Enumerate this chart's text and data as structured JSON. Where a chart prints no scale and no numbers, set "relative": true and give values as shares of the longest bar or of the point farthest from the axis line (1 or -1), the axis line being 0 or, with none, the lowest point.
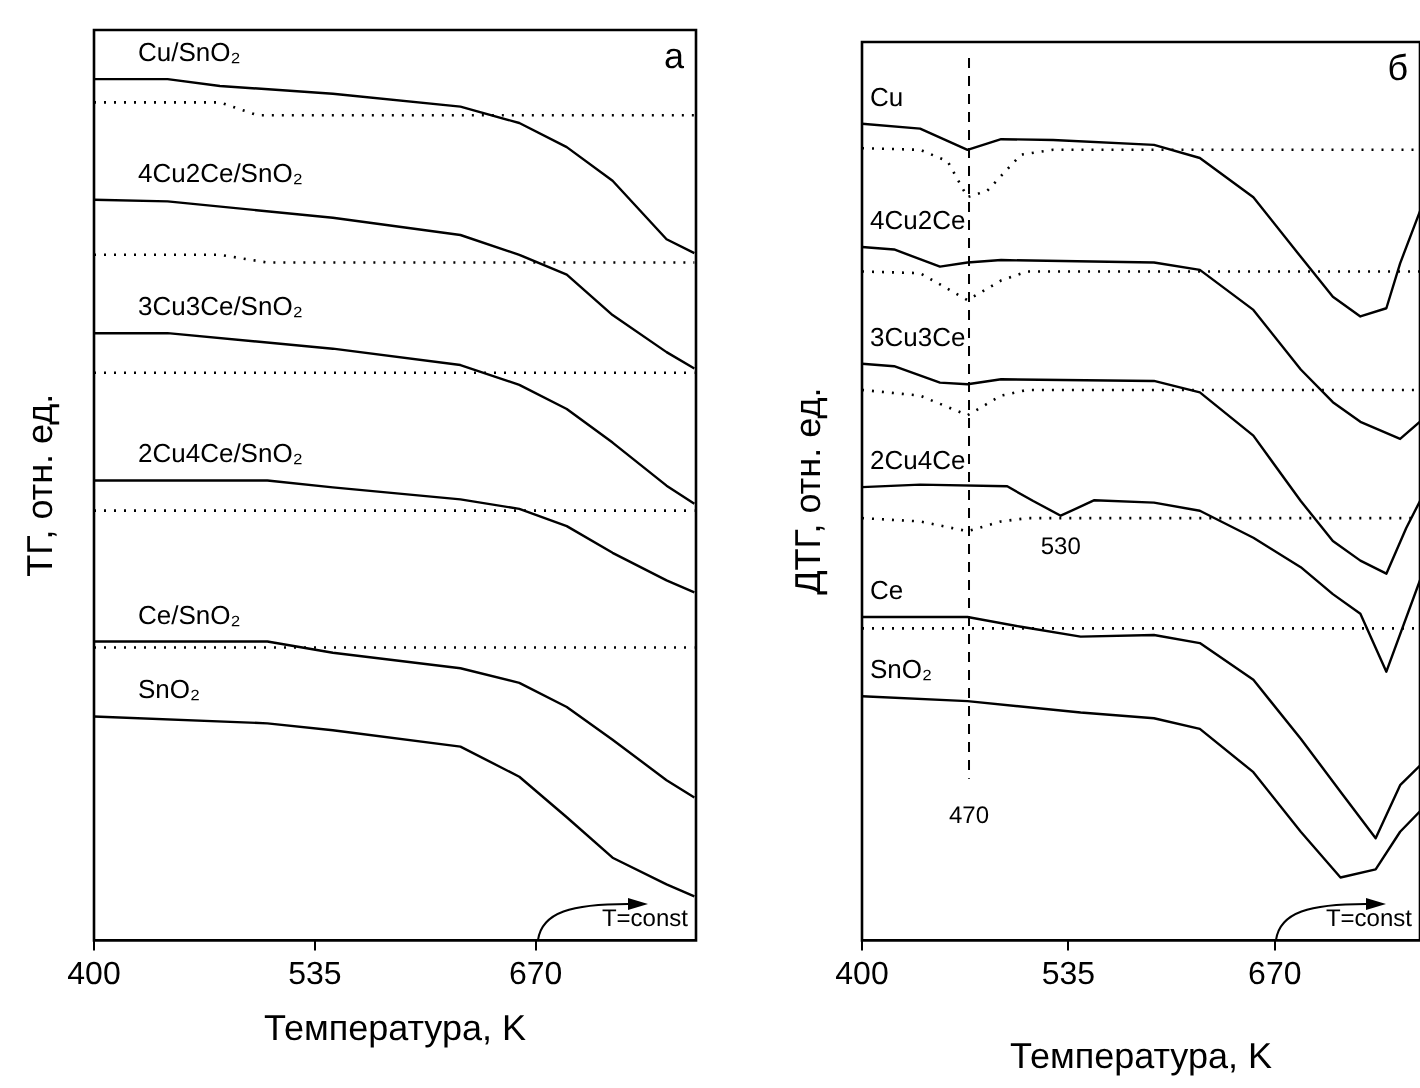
{
  "chart_data": [
    {
      "type": "line",
      "relative": true,
      "xlabel": "Температура, K",
      "ylabel": "ТГ, отн. ед.",
      "xlim": [
        400,
        768
      ],
      "xticks": [
        400,
        535,
        670
      ],
      "grid": false,
      "legend": false,
      "marker": "none",
      "annotations": [
        "а",
        "T=const"
      ],
      "series": [
        {
          "name": "Cu/SnO₂",
          "color": "#000000",
          "line_style": "solid",
          "x": [
            400,
            445,
            477,
            546,
            624,
            660,
            689,
            717,
            750,
            767
          ],
          "values": [
            1.0,
            1.0,
            0.992,
            0.983,
            0.968,
            0.949,
            0.921,
            0.882,
            0.814,
            0.798
          ]
        },
        {
          "color": "#000000",
          "line_style": "dotted",
          "x": [
            400,
            477,
            500,
            767
          ],
          "values": [
            0.973,
            0.973,
            0.958,
            0.958
          ]
        },
        {
          "name": "4Cu2Ce/SnO₂",
          "color": "#000000",
          "line_style": "solid",
          "x": [
            400,
            445,
            546,
            624,
            660,
            689,
            717,
            750,
            767
          ],
          "values": [
            0.86,
            0.858,
            0.839,
            0.819,
            0.796,
            0.773,
            0.726,
            0.683,
            0.664
          ]
        },
        {
          "color": "#000000",
          "line_style": "dotted",
          "x": [
            400,
            477,
            506,
            767
          ],
          "values": [
            0.796,
            0.796,
            0.787,
            0.787
          ]
        },
        {
          "name": "3Cu3Ce/SnO₂",
          "color": "#000000",
          "line_style": "solid",
          "x": [
            400,
            445,
            546,
            624,
            660,
            689,
            717,
            750,
            767
          ],
          "values": [
            0.705,
            0.705,
            0.687,
            0.668,
            0.645,
            0.617,
            0.578,
            0.528,
            0.507
          ]
        },
        {
          "color": "#000000",
          "line_style": "dotted",
          "x": [
            400,
            767
          ],
          "values": [
            0.659,
            0.659
          ]
        },
        {
          "name": "2Cu4Ce/SnO₂",
          "color": "#000000",
          "line_style": "solid",
          "x": [
            400,
            506,
            546,
            624,
            660,
            689,
            717,
            750,
            767
          ],
          "values": [
            0.534,
            0.534,
            0.526,
            0.512,
            0.501,
            0.481,
            0.45,
            0.418,
            0.404
          ]
        },
        {
          "color": "#000000",
          "line_style": "dotted",
          "x": [
            400,
            767
          ],
          "values": [
            0.499,
            0.499
          ]
        },
        {
          "name": "Ce/SnO₂",
          "color": "#000000",
          "line_style": "solid",
          "x": [
            400,
            506,
            546,
            624,
            660,
            689,
            717,
            750,
            767
          ],
          "values": [
            0.347,
            0.347,
            0.334,
            0.316,
            0.299,
            0.271,
            0.233,
            0.186,
            0.166
          ]
        },
        {
          "color": "#000000",
          "line_style": "dotted",
          "x": [
            400,
            767
          ],
          "values": [
            0.34,
            0.34
          ]
        },
        {
          "name": "SnO₂",
          "color": "#000000",
          "line_style": "solid",
          "x": [
            400,
            506,
            546,
            624,
            660,
            689,
            717,
            750,
            767
          ],
          "values": [
            0.26,
            0.252,
            0.244,
            0.225,
            0.19,
            0.143,
            0.096,
            0.065,
            0.051
          ]
        }
      ]
    },
    {
      "type": "line",
      "relative": true,
      "xlabel": "Температура, K",
      "ylabel": "ДТГ, отн. ед.",
      "xlim": [
        400,
        765
      ],
      "xticks": [
        400,
        535,
        670
      ],
      "grid": false,
      "legend": false,
      "marker": "none",
      "annotations": [
        "б",
        "T=const",
        {
          "text": "530",
          "x": 530,
          "y": 0.52
        }
      ],
      "ref_lines": [
        {
          "axis": "x",
          "value": 470,
          "label": "470",
          "line_style": "dashed"
        }
      ],
      "series": [
        {
          "name": "Cu",
          "color": "#000000",
          "line_style": "solid",
          "x": [
            400,
            438,
            469,
            491,
            525,
            591,
            621,
            656,
            687,
            708,
            726,
            743,
            752,
            765
          ],
          "values": [
            1.0,
            0.994,
            0.968,
            0.981,
            0.98,
            0.974,
            0.958,
            0.91,
            0.837,
            0.788,
            0.764,
            0.774,
            0.829,
            0.893
          ]
        },
        {
          "color": "#000000",
          "line_style": "dotted",
          "x": [
            400,
            438,
            456,
            469,
            482,
            504,
            525,
            765
          ],
          "values": [
            0.97,
            0.968,
            0.954,
            0.91,
            0.918,
            0.962,
            0.968,
            0.968
          ]
        },
        {
          "name": "4Cu2Ce",
          "color": "#000000",
          "line_style": "solid",
          "x": [
            400,
            421,
            451,
            469,
            491,
            591,
            621,
            656,
            687,
            708,
            726,
            752,
            765
          ],
          "values": [
            0.849,
            0.846,
            0.825,
            0.83,
            0.833,
            0.83,
            0.821,
            0.772,
            0.699,
            0.659,
            0.635,
            0.614,
            0.635
          ]
        },
        {
          "color": "#000000",
          "line_style": "dotted",
          "x": [
            400,
            438,
            469,
            491,
            508,
            765
          ],
          "values": [
            0.819,
            0.817,
            0.784,
            0.808,
            0.819,
            0.819
          ]
        },
        {
          "name": "3Cu3Ce",
          "color": "#000000",
          "line_style": "solid",
          "x": [
            400,
            421,
            451,
            469,
            491,
            591,
            621,
            656,
            687,
            708,
            726,
            743,
            756,
            765
          ],
          "values": [
            0.706,
            0.703,
            0.683,
            0.681,
            0.687,
            0.685,
            0.671,
            0.618,
            0.538,
            0.489,
            0.465,
            0.449,
            0.505,
            0.538
          ]
        },
        {
          "color": "#000000",
          "line_style": "dotted",
          "x": [
            400,
            438,
            469,
            491,
            508,
            765
          ],
          "values": [
            0.674,
            0.667,
            0.643,
            0.667,
            0.674,
            0.674
          ]
        },
        {
          "name": "2Cu4Ce",
          "color": "#000000",
          "line_style": "solid",
          "x": [
            400,
            438,
            495,
            512,
            530,
            552,
            591,
            621,
            656,
            687,
            708,
            726,
            743,
            765
          ],
          "values": [
            0.555,
            0.558,
            0.556,
            0.538,
            0.52,
            0.539,
            0.536,
            0.526,
            0.493,
            0.457,
            0.424,
            0.4,
            0.329,
            0.441
          ]
        },
        {
          "color": "#000000",
          "line_style": "dotted",
          "x": [
            400,
            438,
            469,
            491,
            508,
            765
          ],
          "values": [
            0.517,
            0.513,
            0.501,
            0.513,
            0.517,
            0.517
          ]
        },
        {
          "name": "Ce",
          "color": "#000000",
          "line_style": "solid",
          "x": [
            400,
            469,
            504,
            543,
            591,
            621,
            656,
            687,
            713,
            736,
            752,
            765
          ],
          "values": [
            0.396,
            0.396,
            0.384,
            0.372,
            0.374,
            0.364,
            0.319,
            0.247,
            0.182,
            0.125,
            0.19,
            0.214
          ]
        },
        {
          "color": "#000000",
          "line_style": "dotted",
          "x": [
            400,
            765
          ],
          "values": [
            0.382,
            0.382
          ]
        },
        {
          "name": "SnO₂",
          "color": "#000000",
          "line_style": "solid",
          "x": [
            400,
            469,
            543,
            591,
            621,
            656,
            687,
            713,
            736,
            752,
            765
          ],
          "values": [
            0.299,
            0.293,
            0.279,
            0.272,
            0.259,
            0.206,
            0.133,
            0.077,
            0.087,
            0.133,
            0.158
          ]
        }
      ]
    }
  ]
}
